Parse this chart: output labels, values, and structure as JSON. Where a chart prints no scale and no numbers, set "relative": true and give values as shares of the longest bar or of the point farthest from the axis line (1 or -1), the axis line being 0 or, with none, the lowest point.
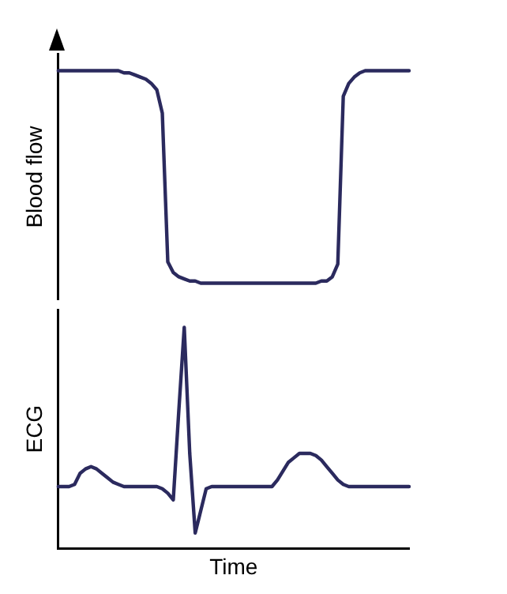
{
  "chart_data": [
    {
      "type": "line",
      "ylabel": "Blood flow",
      "relative": true,
      "tick_labels": false,
      "categories": [
        null,
        null,
        null,
        null,
        null,
        null,
        null,
        null,
        null,
        null,
        null,
        null,
        null,
        null,
        null,
        null,
        null,
        null,
        null,
        null,
        null,
        null,
        null,
        null,
        null,
        null,
        null,
        null,
        null,
        null,
        null,
        null,
        null,
        null,
        null,
        null,
        null,
        null,
        null,
        null,
        null,
        null,
        null,
        null,
        null,
        null,
        null,
        null,
        null,
        null,
        null,
        null,
        null,
        null,
        null,
        null,
        null,
        null,
        null,
        null,
        null,
        null,
        null,
        null,
        null
      ],
      "series": [
        {
          "color": "#2b2a5e",
          "values": [
            1,
            1,
            1,
            1,
            1,
            1,
            1,
            1,
            1,
            1,
            1,
            1,
            0.99,
            0.99,
            0.98,
            0.97,
            0.96,
            0.94,
            0.91,
            0.8,
            0.1,
            0.05,
            0.03,
            0.02,
            0.01,
            0.01,
            0,
            0,
            0,
            0,
            0,
            0,
            0,
            0,
            0,
            0,
            0,
            0,
            0,
            0,
            0,
            0,
            0,
            0,
            0,
            0,
            0,
            0,
            0.01,
            0.01,
            0.03,
            0.09,
            0.88,
            0.94,
            0.97,
            0.99,
            1,
            1,
            1,
            1,
            1,
            1,
            1,
            1,
            1
          ]
        }
      ]
    },
    {
      "type": "line",
      "xlabel": "Time",
      "ylabel": "ECG",
      "relative": true,
      "tick_labels": false,
      "categories": [
        null,
        null,
        null,
        null,
        null,
        null,
        null,
        null,
        null,
        null,
        null,
        null,
        null,
        null,
        null,
        null,
        null,
        null,
        null,
        null,
        null,
        null,
        null,
        null,
        null,
        null,
        null,
        null,
        null,
        null,
        null,
        null,
        null,
        null,
        null,
        null,
        null,
        null,
        null,
        null,
        null,
        null,
        null,
        null,
        null,
        null,
        null,
        null,
        null,
        null,
        null,
        null,
        null,
        null,
        null,
        null,
        null,
        null,
        null,
        null,
        null,
        null,
        null,
        null,
        null
      ],
      "series": [
        {
          "color": "#2b2a5e",
          "values": [
            0.28,
            0.28,
            0.28,
            0.29,
            0.34,
            0.36,
            0.37,
            0.36,
            0.34,
            0.32,
            0.3,
            0.29,
            0.28,
            0.28,
            0.28,
            0.28,
            0.28,
            0.28,
            0.28,
            0.27,
            0.25,
            0.22,
            0.62,
            1,
            0.43,
            0.07,
            0.17,
            0.27,
            0.28,
            0.28,
            0.28,
            0.28,
            0.28,
            0.28,
            0.28,
            0.28,
            0.28,
            0.28,
            0.28,
            0.28,
            0.31,
            0.35,
            0.39,
            0.41,
            0.43,
            0.43,
            0.43,
            0.42,
            0.4,
            0.37,
            0.34,
            0.31,
            0.29,
            0.28,
            0.28,
            0.28,
            0.28,
            0.28,
            0.28,
            0.28,
            0.28,
            0.28,
            0.28,
            0.28,
            0.28
          ]
        }
      ]
    }
  ]
}
